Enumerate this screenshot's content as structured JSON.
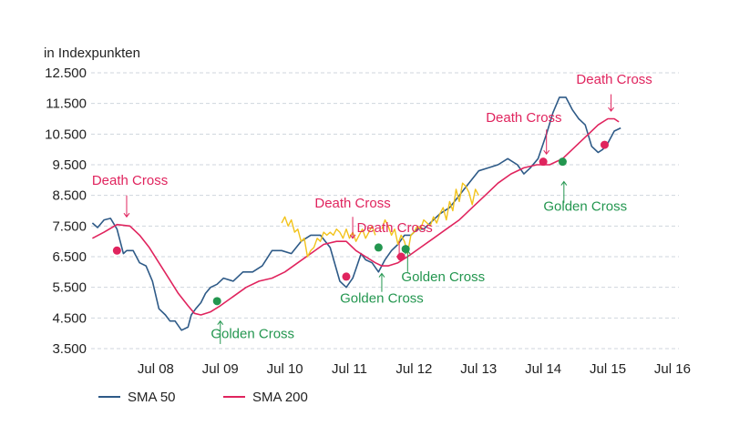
{
  "chart_data": {
    "type": "line",
    "ylabel": "in Indexpunkten",
    "ylim": [
      3500,
      12500
    ],
    "xlim": [
      2007.5,
      2016.6
    ],
    "y_ticks": [
      3500,
      4500,
      5500,
      6500,
      7500,
      8500,
      9500,
      10500,
      11500,
      12500
    ],
    "y_tick_labels": [
      "3.500",
      "4.500",
      "5.500",
      "6.500",
      "7.500",
      "8.500",
      "9.500",
      "10.500",
      "11.500",
      "12.500"
    ],
    "x_ticks": [
      2008.5,
      2009.5,
      2010.5,
      2011.5,
      2012.5,
      2013.5,
      2014.5,
      2015.5,
      2016.5
    ],
    "x_tick_labels": [
      "Jul 08",
      "Jul 09",
      "Jul 10",
      "Jul 11",
      "Jul 12",
      "Jul 13",
      "Jul 14",
      "Jul 15",
      "Jul 16"
    ],
    "grid": true,
    "legend_position": "bottom-left",
    "colors": {
      "sma50": "#2e5a87",
      "sma200": "#e0245e",
      "price": "#f2c31b",
      "death": "#e0245e",
      "golden": "#23964f",
      "grid": "#cfd6dd",
      "text": "#222222"
    },
    "series": [
      {
        "name": "SMA 50",
        "key": "sma50",
        "x": [
          2007.52,
          2007.6,
          2007.7,
          2007.8,
          2007.9,
          2008.0,
          2008.05,
          2008.15,
          2008.25,
          2008.35,
          2008.45,
          2008.55,
          2008.65,
          2008.72,
          2008.8,
          2008.9,
          2009.0,
          2009.05,
          2009.12,
          2009.2,
          2009.27,
          2009.35,
          2009.45,
          2009.55,
          2009.7,
          2009.85,
          2010.0,
          2010.15,
          2010.3,
          2010.45,
          2010.6,
          2010.75,
          2010.9,
          2011.05,
          2011.2,
          2011.35,
          2011.45,
          2011.55,
          2011.6,
          2011.68,
          2011.75,
          2011.85,
          2011.95,
          2012.05,
          2012.15,
          2012.25,
          2012.35,
          2012.45,
          2012.55,
          2012.65,
          2012.75,
          2012.9,
          2013.05,
          2013.2,
          2013.35,
          2013.5,
          2013.65,
          2013.8,
          2013.95,
          2014.1,
          2014.2,
          2014.3,
          2014.42,
          2014.55,
          2014.65,
          2014.75,
          2014.85,
          2014.95,
          2015.05,
          2015.15,
          2015.25,
          2015.35,
          2015.42,
          2015.5,
          2015.6,
          2015.7
        ],
        "values": [
          7600,
          7450,
          7700,
          7750,
          7400,
          6600,
          6700,
          6700,
          6300,
          6200,
          5700,
          4800,
          4600,
          4400,
          4400,
          4100,
          4200,
          4600,
          4800,
          5000,
          5300,
          5500,
          5600,
          5800,
          5700,
          6000,
          6000,
          6200,
          6700,
          6700,
          6600,
          7000,
          7200,
          7200,
          6800,
          5700,
          5500,
          5800,
          6100,
          6600,
          6400,
          6300,
          6000,
          6400,
          6700,
          6900,
          7200,
          7200,
          7400,
          7400,
          7600,
          7900,
          8100,
          8500,
          8900,
          9300,
          9400,
          9500,
          9700,
          9500,
          9200,
          9400,
          9700,
          10500,
          11200,
          11700,
          11700,
          11300,
          11000,
          10800,
          10100,
          9900,
          10000,
          10200,
          10600,
          10700
        ]
      },
      {
        "name": "SMA 200",
        "key": "sma200",
        "x": [
          2007.52,
          2007.7,
          2007.9,
          2008.1,
          2008.25,
          2008.4,
          2008.55,
          2008.7,
          2008.85,
          2009.0,
          2009.1,
          2009.2,
          2009.35,
          2009.5,
          2009.7,
          2009.9,
          2010.1,
          2010.3,
          2010.5,
          2010.7,
          2010.9,
          2011.1,
          2011.3,
          2011.45,
          2011.6,
          2011.75,
          2011.9,
          2012.0,
          2012.1,
          2012.25,
          2012.4,
          2012.6,
          2012.8,
          2013.0,
          2013.2,
          2013.4,
          2013.6,
          2013.8,
          2014.0,
          2014.2,
          2014.4,
          2014.6,
          2014.8,
          2015.0,
          2015.2,
          2015.35,
          2015.5,
          2015.6,
          2015.67
        ],
        "values": [
          7100,
          7300,
          7550,
          7500,
          7200,
          6800,
          6300,
          5800,
          5300,
          4900,
          4650,
          4600,
          4700,
          4900,
          5200,
          5500,
          5700,
          5800,
          6000,
          6300,
          6600,
          6900,
          7000,
          7000,
          6700,
          6500,
          6300,
          6200,
          6200,
          6300,
          6500,
          6800,
          7100,
          7400,
          7700,
          8100,
          8500,
          8900,
          9200,
          9400,
          9500,
          9500,
          9700,
          10100,
          10500,
          10800,
          11000,
          11000,
          10900
        ]
      },
      {
        "name": "",
        "key": "price",
        "segments": [
          {
            "x": [
              2010.45,
              2010.5,
              2010.55,
              2010.6,
              2010.65,
              2010.7,
              2010.75,
              2010.8,
              2010.85,
              2010.9,
              2010.95,
              2011.0,
              2011.05,
              2011.1,
              2011.15,
              2011.2,
              2011.25,
              2011.3,
              2011.35,
              2011.4,
              2011.45,
              2011.5,
              2011.55,
              2011.6,
              2011.65,
              2011.7,
              2011.75,
              2011.8,
              2011.85,
              2011.9
            ],
            "values": [
              7600,
              7800,
              7500,
              7700,
              7300,
              7400,
              7000,
              7100,
              6500,
              6700,
              6800,
              7100,
              7000,
              7300,
              7200,
              7300,
              7200,
              7400,
              7300,
              7100,
              7400,
              7100,
              7300,
              7000,
              7200,
              7400,
              7100,
              7300,
              7500,
              7200
            ]
          },
          {
            "x": [
              2012.0,
              2012.05,
              2012.1,
              2012.15,
              2012.2,
              2012.25,
              2012.3,
              2012.35,
              2012.4,
              2012.45,
              2012.5,
              2012.55,
              2012.6,
              2012.65,
              2012.7,
              2012.75,
              2012.8,
              2012.85,
              2012.9,
              2012.95,
              2013.0,
              2013.05,
              2013.1,
              2013.15,
              2013.2,
              2013.25,
              2013.3,
              2013.35,
              2013.4,
              2013.45,
              2013.5
            ],
            "values": [
              7400,
              7700,
              7500,
              7200,
              7400,
              6900,
              7200,
              7000,
              6600,
              7200,
              7300,
              7500,
              7400,
              7700,
              7600,
              7500,
              7800,
              7600,
              7900,
              8100,
              7700,
              8300,
              8000,
              8700,
              8300,
              8900,
              8800,
              8600,
              8200,
              8700,
              8500
            ]
          }
        ]
      }
    ],
    "markers": [
      {
        "type": "death",
        "x": 2007.9,
        "y": 6700
      },
      {
        "type": "golden",
        "x": 2009.45,
        "y": 5050
      },
      {
        "type": "death",
        "x": 2011.45,
        "y": 5850
      },
      {
        "type": "golden",
        "x": 2011.95,
        "y": 6800
      },
      {
        "type": "death",
        "x": 2012.3,
        "y": 6500
      },
      {
        "type": "golden",
        "x": 2012.37,
        "y": 6750
      },
      {
        "type": "death",
        "x": 2014.5,
        "y": 9600
      },
      {
        "type": "golden",
        "x": 2014.8,
        "y": 9600
      },
      {
        "type": "death",
        "x": 2015.45,
        "y": 10150
      }
    ],
    "annotations": [
      {
        "text": "Death Cross",
        "type": "death",
        "x": 2008.1,
        "y": 8850,
        "arrow": "down",
        "arrow_x": 2008.05,
        "arrow_from": 8500,
        "arrow_to": 7800
      },
      {
        "text": "Golden Cross",
        "type": "golden",
        "x": 2010.0,
        "y": 3840,
        "arrow": "up",
        "arrow_x": 2009.5,
        "arrow_from": 3650,
        "arrow_to": 4400
      },
      {
        "text": "Death Cross",
        "type": "death",
        "x": 2011.55,
        "y": 8100,
        "arrow": "down",
        "arrow_x": 2011.55,
        "arrow_from": 7800,
        "arrow_to": 7100
      },
      {
        "text": "Death Cross",
        "type": "death",
        "x": 2012.2,
        "y": 7300,
        "arrow": "down",
        "arrow_x": 2012.27,
        "arrow_from": 7000,
        "arrow_to": 6400
      },
      {
        "text": "Golden Cross",
        "type": "golden",
        "x": 2012.95,
        "y": 5700,
        "arrow": "up",
        "arrow_x": 2012.4,
        "arrow_from": 6000,
        "arrow_to": 6700
      },
      {
        "text": "Golden Cross",
        "type": "golden",
        "x": 2012.0,
        "y": 5000,
        "arrow": "up",
        "arrow_x": 2012.0,
        "arrow_from": 5350,
        "arrow_to": 5950
      },
      {
        "text": "Death Cross",
        "type": "death",
        "x": 2014.2,
        "y": 10900,
        "arrow": "down",
        "arrow_x": 2014.55,
        "arrow_from": 10650,
        "arrow_to": 9850
      },
      {
        "text": "Golden Cross",
        "type": "golden",
        "x": 2015.15,
        "y": 8000,
        "arrow": "up",
        "arrow_x": 2014.82,
        "arrow_from": 8250,
        "arrow_to": 8950
      },
      {
        "text": "Death Cross",
        "type": "death",
        "x": 2015.6,
        "y": 12150,
        "arrow": "down",
        "arrow_x": 2015.55,
        "arrow_from": 11800,
        "arrow_to": 11250
      }
    ]
  }
}
